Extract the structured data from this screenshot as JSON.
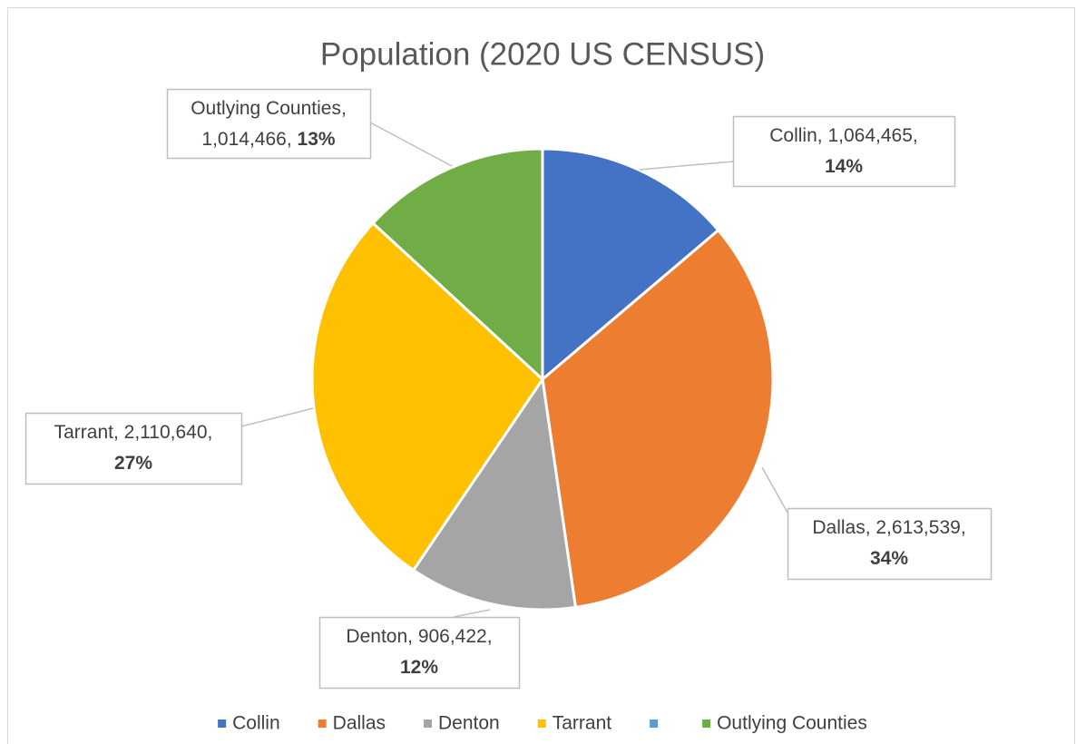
{
  "chart_data": {
    "type": "pie",
    "title": "Population (2020 US CENSUS)",
    "categories": [
      "Collin",
      "Dallas",
      "Denton",
      "Tarrant",
      null,
      "Outlying Counties"
    ],
    "values": [
      1064465,
      2613539,
      906422,
      2110640,
      0,
      1014466
    ],
    "value_labels": [
      "1,064,465",
      "2,613,539",
      "906,422",
      "2,110,640",
      null,
      "1,014,466"
    ],
    "percent_labels": [
      "14%",
      "34%",
      "12%",
      "27%",
      null,
      "13%"
    ],
    "label_separator": ", ",
    "colors": [
      "#4472c4",
      "#ed7d31",
      "#a5a5a5",
      "#ffc000",
      "#5b9bd5",
      "#70ad47"
    ],
    "legend": "bottom"
  }
}
